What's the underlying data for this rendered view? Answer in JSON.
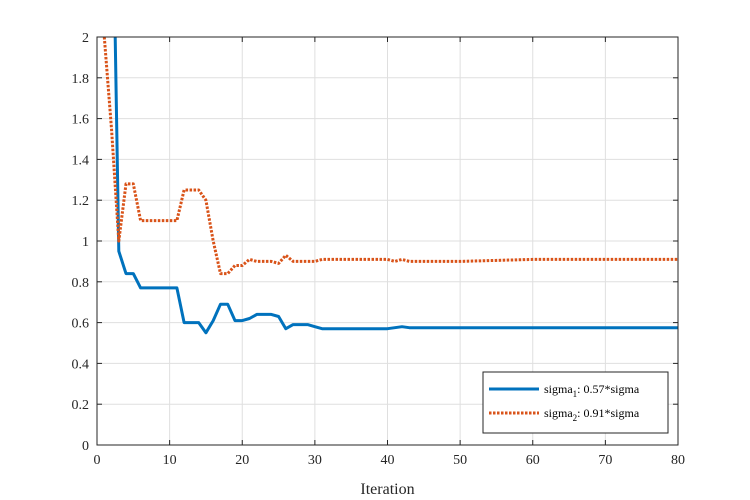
{
  "chart_data": {
    "type": "line",
    "title": "",
    "xlabel": "Iteration",
    "ylabel": "",
    "xlim": [
      0,
      80
    ],
    "ylim": [
      0,
      2
    ],
    "xticks": [
      0,
      10,
      20,
      30,
      40,
      50,
      60,
      70,
      80
    ],
    "yticks": [
      0,
      0.2,
      0.4,
      0.6,
      0.8,
      1,
      1.2,
      1.4,
      1.6,
      1.8,
      2
    ],
    "grid": true,
    "legend_position": "bottom-right",
    "series": [
      {
        "name": "sigma",
        "name_subscript": "1",
        "name_suffix": ": 0.57*sigma",
        "color": "#0072BD",
        "line_style": "solid",
        "x": [
          2.5,
          3,
          4,
          5,
          6,
          7,
          8,
          9,
          10,
          11,
          12,
          13,
          14,
          15,
          16,
          17,
          18,
          19,
          20,
          21,
          22,
          23,
          24,
          25,
          26,
          27,
          28,
          29,
          30,
          31,
          32,
          35,
          40,
          41,
          42,
          43,
          44,
          50,
          60,
          70,
          80
        ],
        "y": [
          2.0,
          0.95,
          0.84,
          0.84,
          0.77,
          0.77,
          0.77,
          0.77,
          0.77,
          0.77,
          0.6,
          0.6,
          0.6,
          0.55,
          0.61,
          0.69,
          0.69,
          0.61,
          0.61,
          0.62,
          0.64,
          0.64,
          0.64,
          0.63,
          0.57,
          0.59,
          0.59,
          0.59,
          0.58,
          0.57,
          0.57,
          0.57,
          0.57,
          0.575,
          0.58,
          0.575,
          0.575,
          0.575,
          0.575,
          0.575,
          0.575
        ]
      },
      {
        "name": "sigma",
        "name_subscript": "2",
        "name_suffix": ": 0.91*sigma",
        "color": "#D95319",
        "line_style": "dotted",
        "x": [
          1,
          2,
          3,
          4,
          5,
          6,
          7,
          8,
          9,
          10,
          11,
          12,
          13,
          14,
          15,
          16,
          17,
          18,
          19,
          20,
          21,
          22,
          23,
          24,
          25,
          26,
          27,
          28,
          29,
          30,
          31,
          35,
          40,
          41,
          42,
          43,
          44,
          50,
          60,
          70,
          80
        ],
        "y": [
          2.0,
          1.55,
          1.0,
          1.28,
          1.28,
          1.1,
          1.1,
          1.1,
          1.1,
          1.1,
          1.1,
          1.25,
          1.25,
          1.25,
          1.2,
          1.0,
          0.84,
          0.84,
          0.88,
          0.88,
          0.91,
          0.9,
          0.9,
          0.9,
          0.89,
          0.93,
          0.9,
          0.9,
          0.9,
          0.9,
          0.91,
          0.91,
          0.91,
          0.9,
          0.91,
          0.9,
          0.9,
          0.9,
          0.91,
          0.91,
          0.91
        ]
      }
    ]
  }
}
